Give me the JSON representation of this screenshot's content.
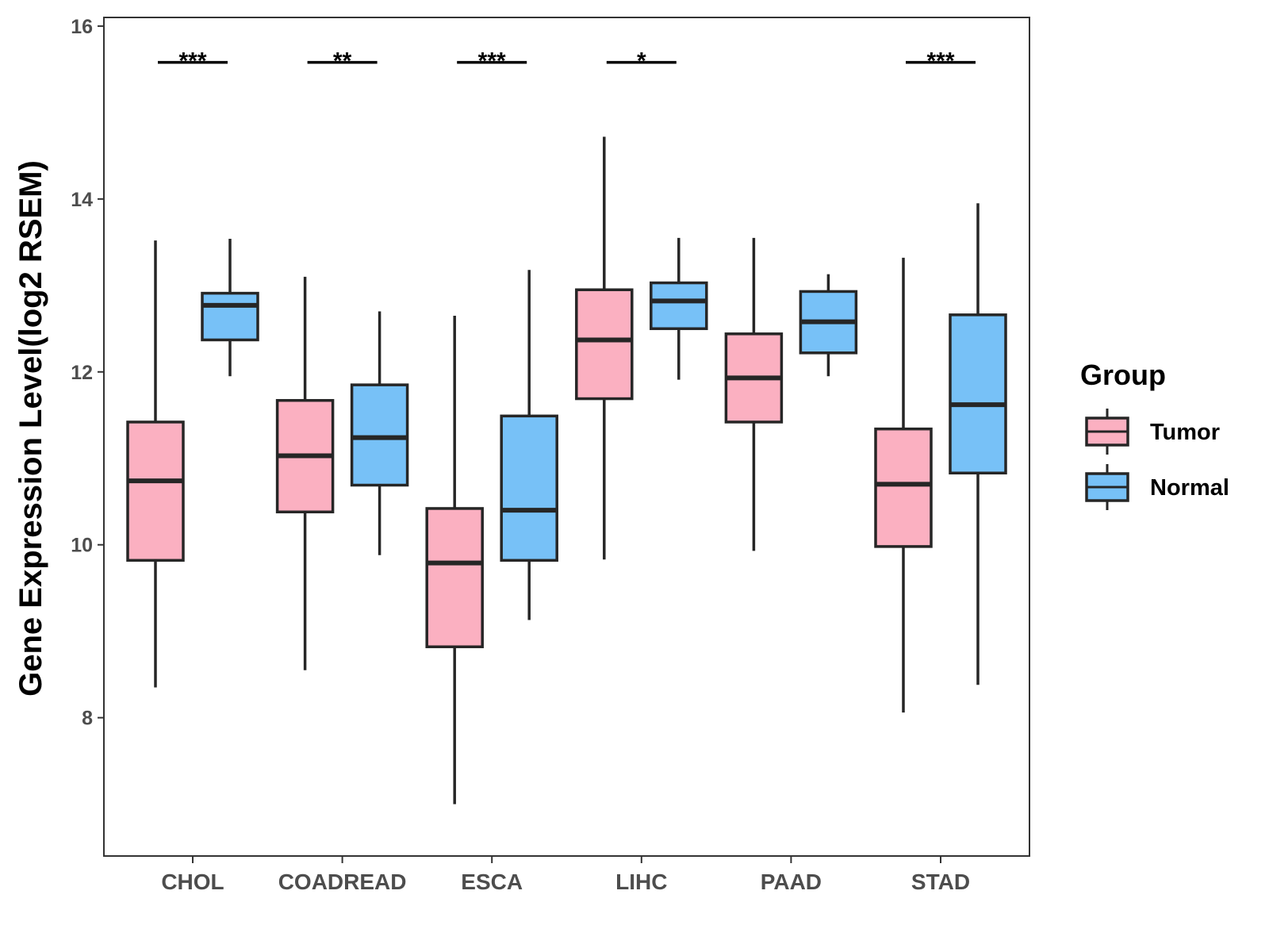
{
  "chart_data": {
    "type": "boxplot",
    "title": "",
    "xlabel": "",
    "ylabel": "Gene Expression Level(log2 RSEM)",
    "ylim": [
      6.4,
      16.1
    ],
    "yticks": [
      8,
      10,
      12,
      14,
      16
    ],
    "grid": false,
    "categories": [
      "CHOL",
      "COADREAD",
      "ESCA",
      "LIHC",
      "PAAD",
      "STAD"
    ],
    "legend": {
      "title": "Group",
      "placement": "right",
      "entries": [
        {
          "name": "Tumor",
          "color": "#fbb0c1"
        },
        {
          "name": "Normal",
          "color": "#77c1f7"
        }
      ]
    },
    "series": [
      {
        "name": "Tumor",
        "color": "#fbb0c1",
        "boxes": [
          {
            "min": 8.35,
            "q1": 9.82,
            "median": 10.74,
            "q3": 11.42,
            "max": 13.52
          },
          {
            "min": 8.55,
            "q1": 10.38,
            "median": 11.03,
            "q3": 11.67,
            "max": 13.1
          },
          {
            "min": 7.0,
            "q1": 8.82,
            "median": 9.79,
            "q3": 10.42,
            "max": 12.65
          },
          {
            "min": 9.83,
            "q1": 11.69,
            "median": 12.37,
            "q3": 12.95,
            "max": 14.72
          },
          {
            "min": 9.93,
            "q1": 11.42,
            "median": 11.93,
            "q3": 12.44,
            "max": 13.55
          },
          {
            "min": 8.06,
            "q1": 9.98,
            "median": 10.7,
            "q3": 11.34,
            "max": 13.32
          }
        ]
      },
      {
        "name": "Normal",
        "color": "#77c1f7",
        "boxes": [
          {
            "min": 11.95,
            "q1": 12.37,
            "median": 12.77,
            "q3": 12.91,
            "max": 13.54
          },
          {
            "min": 9.88,
            "q1": 10.69,
            "median": 11.24,
            "q3": 11.85,
            "max": 12.7
          },
          {
            "min": 9.13,
            "q1": 9.82,
            "median": 10.4,
            "q3": 11.49,
            "max": 13.18
          },
          {
            "min": 11.91,
            "q1": 12.5,
            "median": 12.82,
            "q3": 13.03,
            "max": 13.55
          },
          {
            "min": 11.95,
            "q1": 12.22,
            "median": 12.58,
            "q3": 12.93,
            "max": 13.13
          },
          {
            "min": 8.38,
            "q1": 10.83,
            "median": 11.62,
            "q3": 12.66,
            "max": 13.95
          }
        ]
      }
    ],
    "significance": [
      {
        "category": "CHOL",
        "label": "***",
        "y": 15.58
      },
      {
        "category": "COADREAD",
        "label": "**",
        "y": 15.58
      },
      {
        "category": "ESCA",
        "label": "***",
        "y": 15.58
      },
      {
        "category": "LIHC",
        "label": "*",
        "y": 15.58
      },
      {
        "category": "PAAD",
        "label": "",
        "y": 15.58
      },
      {
        "category": "STAD",
        "label": "***",
        "y": 15.58
      }
    ]
  }
}
